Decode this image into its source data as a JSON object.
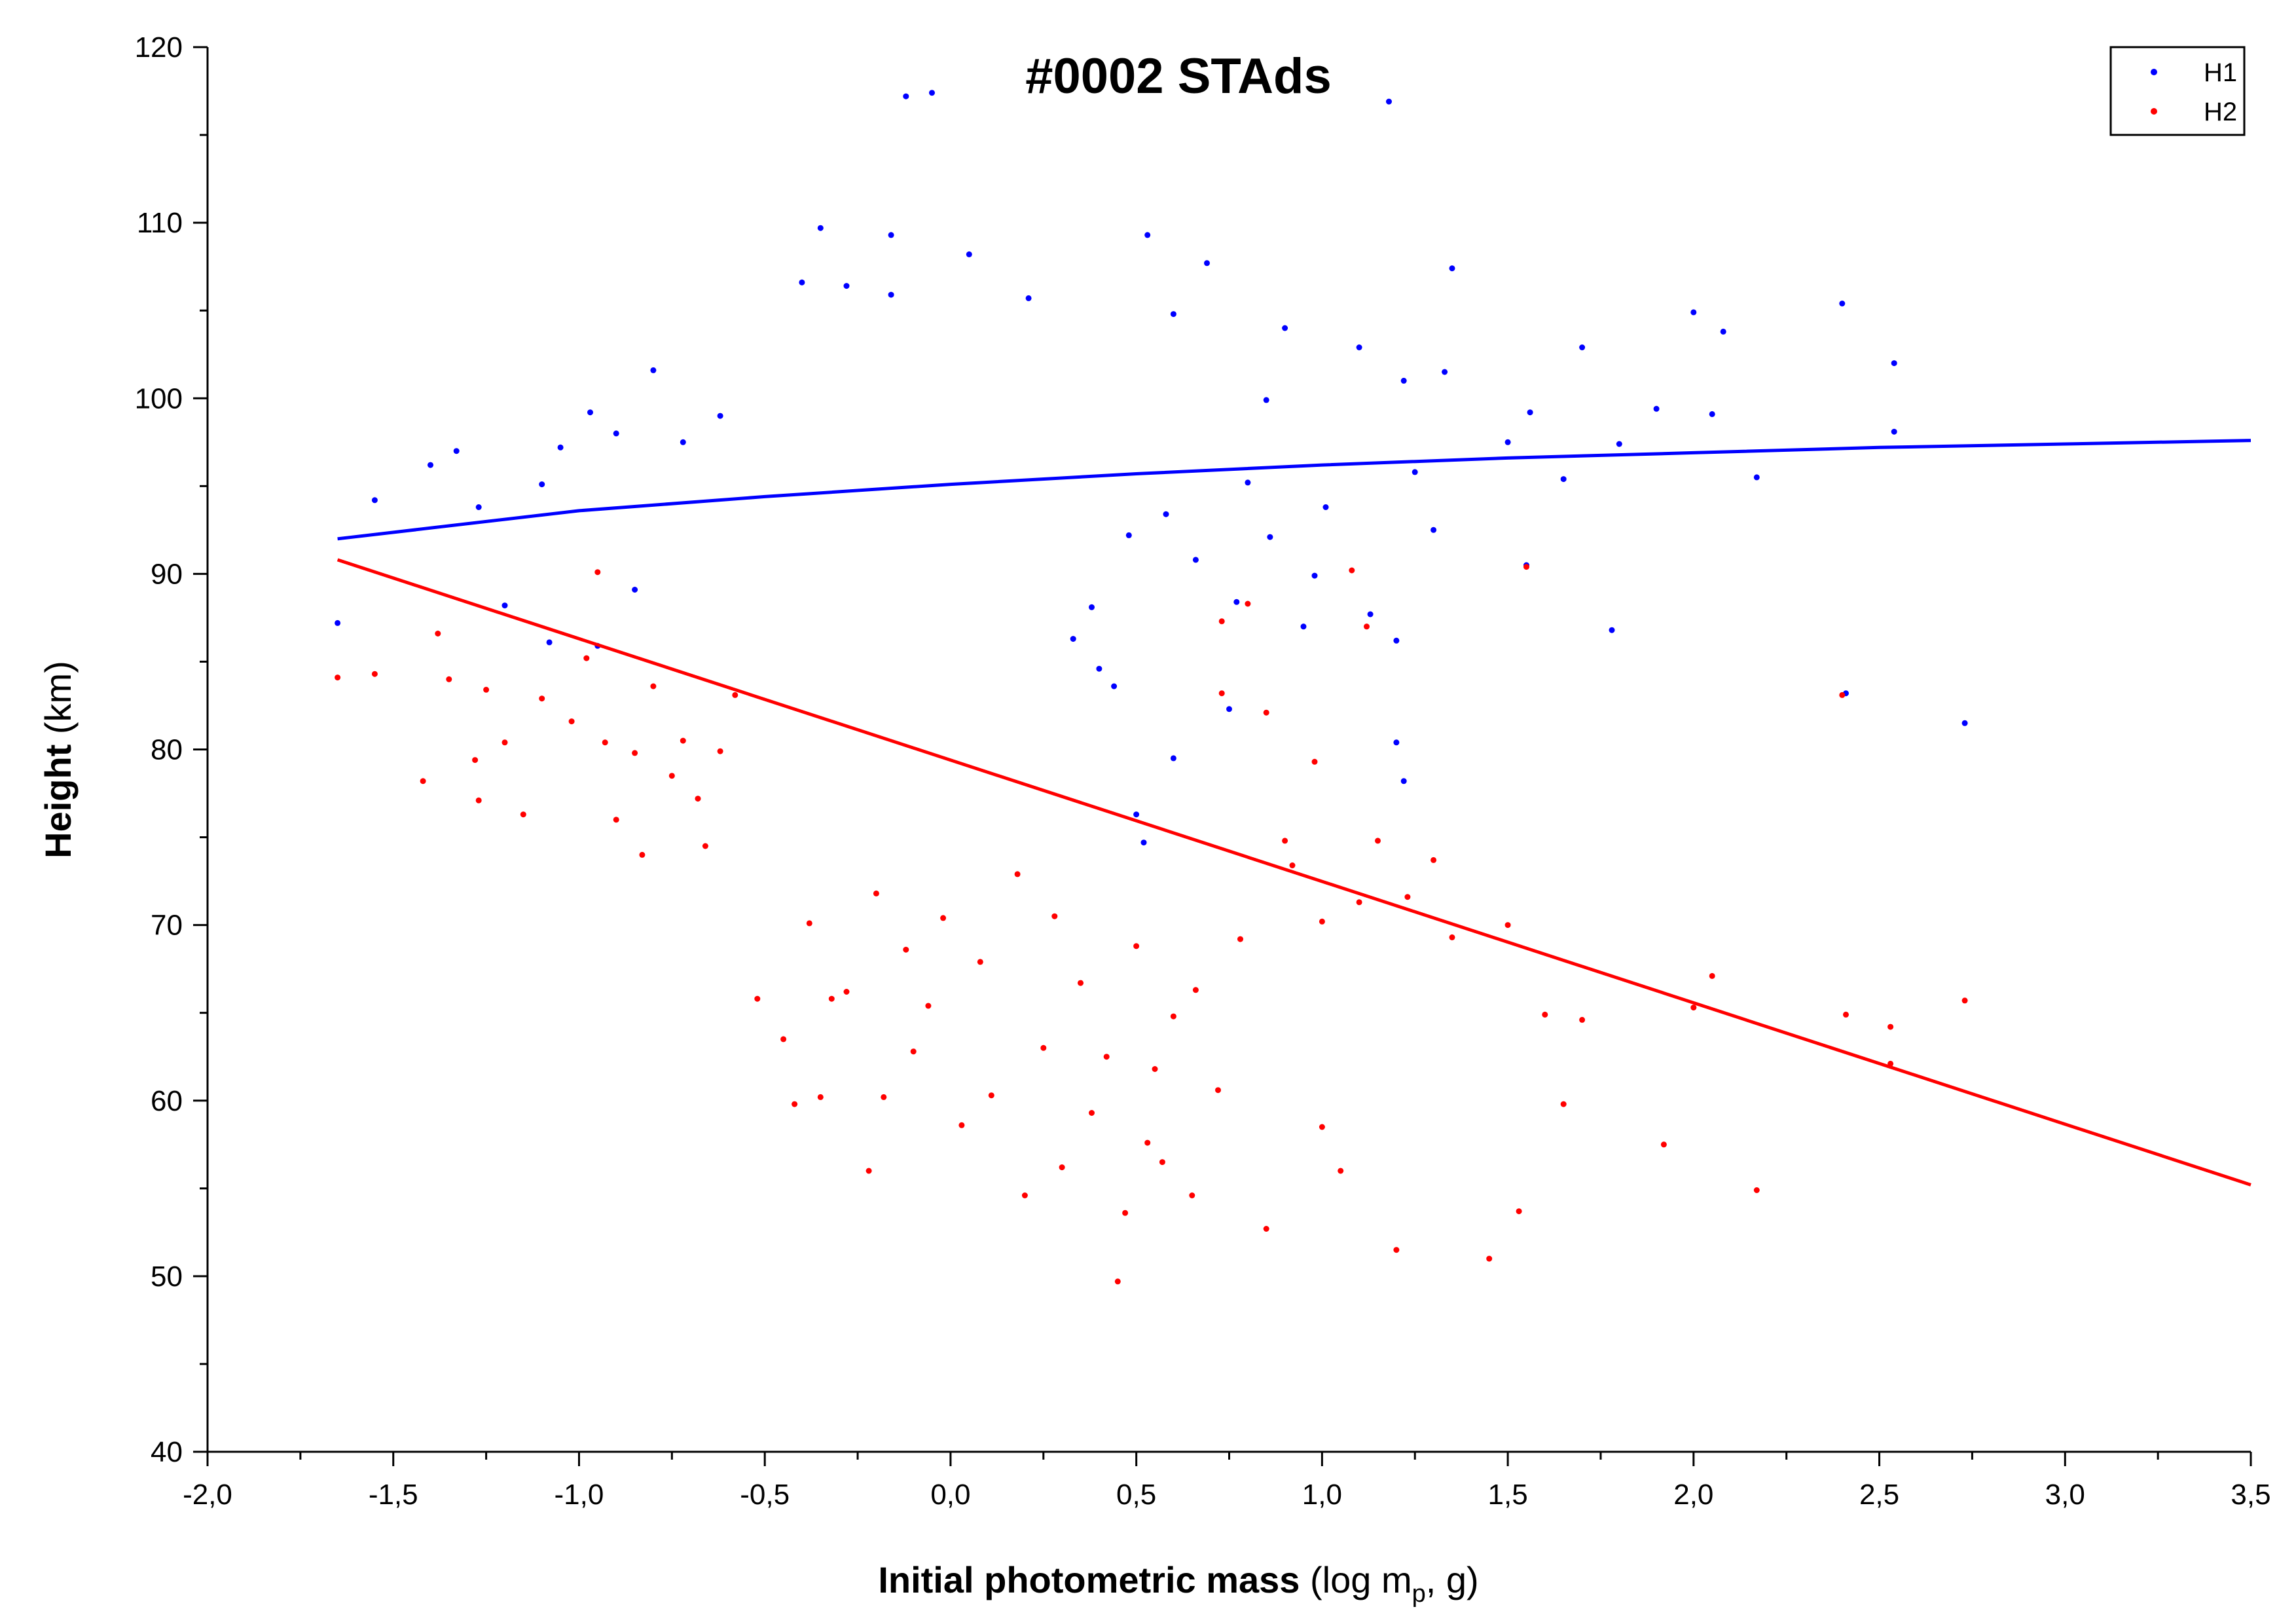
{
  "chart_data": {
    "type": "scatter",
    "title": "#0002 STAds",
    "xlabel": {
      "bold": "Initial photometric mass",
      "pre": " (log m",
      "sub": "p",
      "post": ", g)"
    },
    "ylabel": {
      "bold": "Height",
      "rest": " (km)"
    },
    "xlim": [
      -2.0,
      3.5
    ],
    "ylim": [
      40,
      120
    ],
    "x_ticks": [
      -2.0,
      -1.5,
      -1.0,
      -0.5,
      0.0,
      0.5,
      1.0,
      1.5,
      2.0,
      2.5,
      3.0,
      3.5
    ],
    "x_tick_labels": [
      "-2,0",
      "-1,5",
      "-1,0",
      "-0,5",
      "0,0",
      "0,5",
      "1,0",
      "1,5",
      "2,0",
      "2,5",
      "3,0",
      "3,5"
    ],
    "y_ticks": [
      40,
      50,
      60,
      70,
      80,
      90,
      100,
      110,
      120
    ],
    "y_tick_labels": [
      "40",
      "50",
      "60",
      "70",
      "80",
      "90",
      "100",
      "110",
      "120"
    ],
    "grid": false,
    "legend_position": "top-right",
    "series": [
      {
        "name": "H1",
        "color": "#0000ff",
        "points": [
          [
            -0.35,
            109.7
          ],
          [
            -0.16,
            109.3
          ],
          [
            0.05,
            108.2
          ],
          [
            0.53,
            109.3
          ],
          [
            0.69,
            107.7
          ],
          [
            1.35,
            107.4
          ],
          [
            -0.4,
            106.6
          ],
          [
            -0.28,
            106.4
          ],
          [
            -0.16,
            105.9
          ],
          [
            0.21,
            105.7
          ],
          [
            0.6,
            104.8
          ],
          [
            0.9,
            104.0
          ],
          [
            2.0,
            104.9
          ],
          [
            2.4,
            105.4
          ],
          [
            -0.12,
            117.2
          ],
          [
            -0.05,
            117.4
          ],
          [
            1.18,
            116.9
          ],
          [
            -1.55,
            94.2
          ],
          [
            -1.4,
            96.2
          ],
          [
            -1.33,
            97.0
          ],
          [
            -1.27,
            93.8
          ],
          [
            -1.1,
            95.1
          ],
          [
            -1.05,
            97.2
          ],
          [
            -0.97,
            99.2
          ],
          [
            -0.9,
            98.0
          ],
          [
            -0.8,
            101.6
          ],
          [
            -0.72,
            97.5
          ],
          [
            -0.62,
            99.0
          ],
          [
            -1.2,
            88.2
          ],
          [
            -1.08,
            86.1
          ],
          [
            -0.95,
            85.9
          ],
          [
            -0.85,
            89.1
          ],
          [
            -1.65,
            87.2
          ],
          [
            1.5,
            97.5
          ],
          [
            1.7,
            102.9
          ],
          [
            1.56,
            99.2
          ],
          [
            2.05,
            99.1
          ],
          [
            2.17,
            95.5
          ],
          [
            2.54,
            102.0
          ],
          [
            2.54,
            98.1
          ],
          [
            1.25,
            95.8
          ],
          [
            1.3,
            92.5
          ],
          [
            1.33,
            101.5
          ],
          [
            1.1,
            102.9
          ],
          [
            1.22,
            101.0
          ],
          [
            1.65,
            95.4
          ],
          [
            1.8,
            97.4
          ],
          [
            1.55,
            90.5
          ],
          [
            1.78,
            86.8
          ],
          [
            1.9,
            99.4
          ],
          [
            2.08,
            103.8
          ],
          [
            1.01,
            93.8
          ],
          [
            0.98,
            89.9
          ],
          [
            0.86,
            92.1
          ],
          [
            0.95,
            87.0
          ],
          [
            1.13,
            87.7
          ],
          [
            1.2,
            86.2
          ],
          [
            1.22,
            78.2
          ],
          [
            1.2,
            80.4
          ],
          [
            2.73,
            81.5
          ],
          [
            2.41,
            83.2
          ],
          [
            0.75,
            82.3
          ],
          [
            0.6,
            79.5
          ],
          [
            0.52,
            74.7
          ],
          [
            0.5,
            76.3
          ],
          [
            0.4,
            84.6
          ],
          [
            0.44,
            83.6
          ],
          [
            0.33,
            86.3
          ],
          [
            0.38,
            88.1
          ],
          [
            0.48,
            92.2
          ],
          [
            0.58,
            93.4
          ],
          [
            0.66,
            90.8
          ],
          [
            0.77,
            88.4
          ],
          [
            0.8,
            95.2
          ],
          [
            0.85,
            99.9
          ]
        ],
        "fit": [
          [
            -1.65,
            92.0
          ],
          [
            -1.0,
            93.6
          ],
          [
            -0.5,
            94.4
          ],
          [
            0.0,
            95.1
          ],
          [
            0.5,
            95.7
          ],
          [
            1.0,
            96.2
          ],
          [
            1.5,
            96.6
          ],
          [
            2.0,
            96.9
          ],
          [
            2.5,
            97.2
          ],
          [
            3.0,
            97.4
          ],
          [
            3.5,
            97.6
          ]
        ]
      },
      {
        "name": "H2",
        "color": "#ff0000",
        "points": [
          [
            -1.65,
            84.1
          ],
          [
            -1.55,
            84.3
          ],
          [
            -1.42,
            78.2
          ],
          [
            -1.38,
            86.6
          ],
          [
            -1.35,
            84.0
          ],
          [
            -1.28,
            79.4
          ],
          [
            -1.27,
            77.1
          ],
          [
            -1.25,
            83.4
          ],
          [
            -1.2,
            80.4
          ],
          [
            -1.15,
            76.3
          ],
          [
            -1.1,
            82.9
          ],
          [
            -1.02,
            81.6
          ],
          [
            -0.98,
            85.2
          ],
          [
            -0.95,
            90.1
          ],
          [
            -0.93,
            80.4
          ],
          [
            -0.9,
            76.0
          ],
          [
            -0.85,
            79.8
          ],
          [
            -0.83,
            74.0
          ],
          [
            -0.8,
            83.6
          ],
          [
            -0.75,
            78.5
          ],
          [
            -0.72,
            80.5
          ],
          [
            -0.68,
            77.2
          ],
          [
            -0.66,
            74.5
          ],
          [
            -0.62,
            79.9
          ],
          [
            -0.58,
            83.1
          ],
          [
            -0.52,
            65.8
          ],
          [
            -0.45,
            63.5
          ],
          [
            -0.42,
            59.8
          ],
          [
            -0.35,
            60.2
          ],
          [
            -0.32,
            65.8
          ],
          [
            -0.22,
            56.0
          ],
          [
            -0.18,
            60.2
          ],
          [
            -0.1,
            62.8
          ],
          [
            -0.06,
            65.4
          ],
          [
            0.03,
            58.6
          ],
          [
            0.11,
            60.3
          ],
          [
            0.2,
            54.6
          ],
          [
            0.25,
            63.0
          ],
          [
            0.3,
            56.2
          ],
          [
            0.38,
            59.3
          ],
          [
            0.45,
            49.7
          ],
          [
            0.47,
            53.6
          ],
          [
            0.53,
            57.6
          ],
          [
            0.57,
            56.5
          ],
          [
            0.65,
            54.6
          ],
          [
            0.72,
            60.6
          ],
          [
            0.85,
            52.7
          ],
          [
            1.0,
            58.5
          ],
          [
            1.05,
            56.0
          ],
          [
            1.2,
            51.5
          ],
          [
            1.45,
            51.0
          ],
          [
            1.53,
            53.7
          ],
          [
            1.92,
            57.5
          ],
          [
            2.17,
            54.9
          ],
          [
            2.53,
            62.1
          ],
          [
            2.53,
            64.2
          ],
          [
            2.73,
            65.7
          ],
          [
            2.41,
            64.9
          ],
          [
            2.05,
            67.1
          ],
          [
            2.0,
            65.3
          ],
          [
            1.7,
            64.6
          ],
          [
            1.65,
            59.8
          ],
          [
            1.6,
            64.9
          ],
          [
            1.5,
            70.0
          ],
          [
            1.35,
            69.3
          ],
          [
            1.3,
            73.7
          ],
          [
            1.23,
            71.6
          ],
          [
            1.15,
            74.8
          ],
          [
            1.1,
            71.3
          ],
          [
            1.0,
            70.2
          ],
          [
            0.9,
            74.8
          ],
          [
            0.92,
            73.4
          ],
          [
            0.98,
            79.3
          ],
          [
            0.85,
            82.1
          ],
          [
            0.73,
            83.2
          ],
          [
            0.73,
            87.3
          ],
          [
            0.8,
            88.3
          ],
          [
            1.08,
            90.2
          ],
          [
            1.55,
            90.4
          ],
          [
            1.12,
            87.0
          ],
          [
            2.4,
            83.1
          ],
          [
            0.6,
            64.8
          ],
          [
            0.66,
            66.3
          ],
          [
            0.78,
            69.2
          ],
          [
            0.55,
            61.8
          ],
          [
            0.5,
            68.8
          ],
          [
            0.42,
            62.5
          ],
          [
            0.35,
            66.7
          ],
          [
            0.28,
            70.5
          ],
          [
            0.18,
            72.9
          ],
          [
            0.08,
            67.9
          ],
          [
            -0.02,
            70.4
          ],
          [
            -0.12,
            68.6
          ],
          [
            -0.2,
            71.8
          ],
          [
            -0.28,
            66.2
          ],
          [
            -0.38,
            70.1
          ]
        ],
        "fit": [
          [
            -1.65,
            90.8
          ],
          [
            3.5,
            55.2
          ]
        ]
      }
    ]
  }
}
